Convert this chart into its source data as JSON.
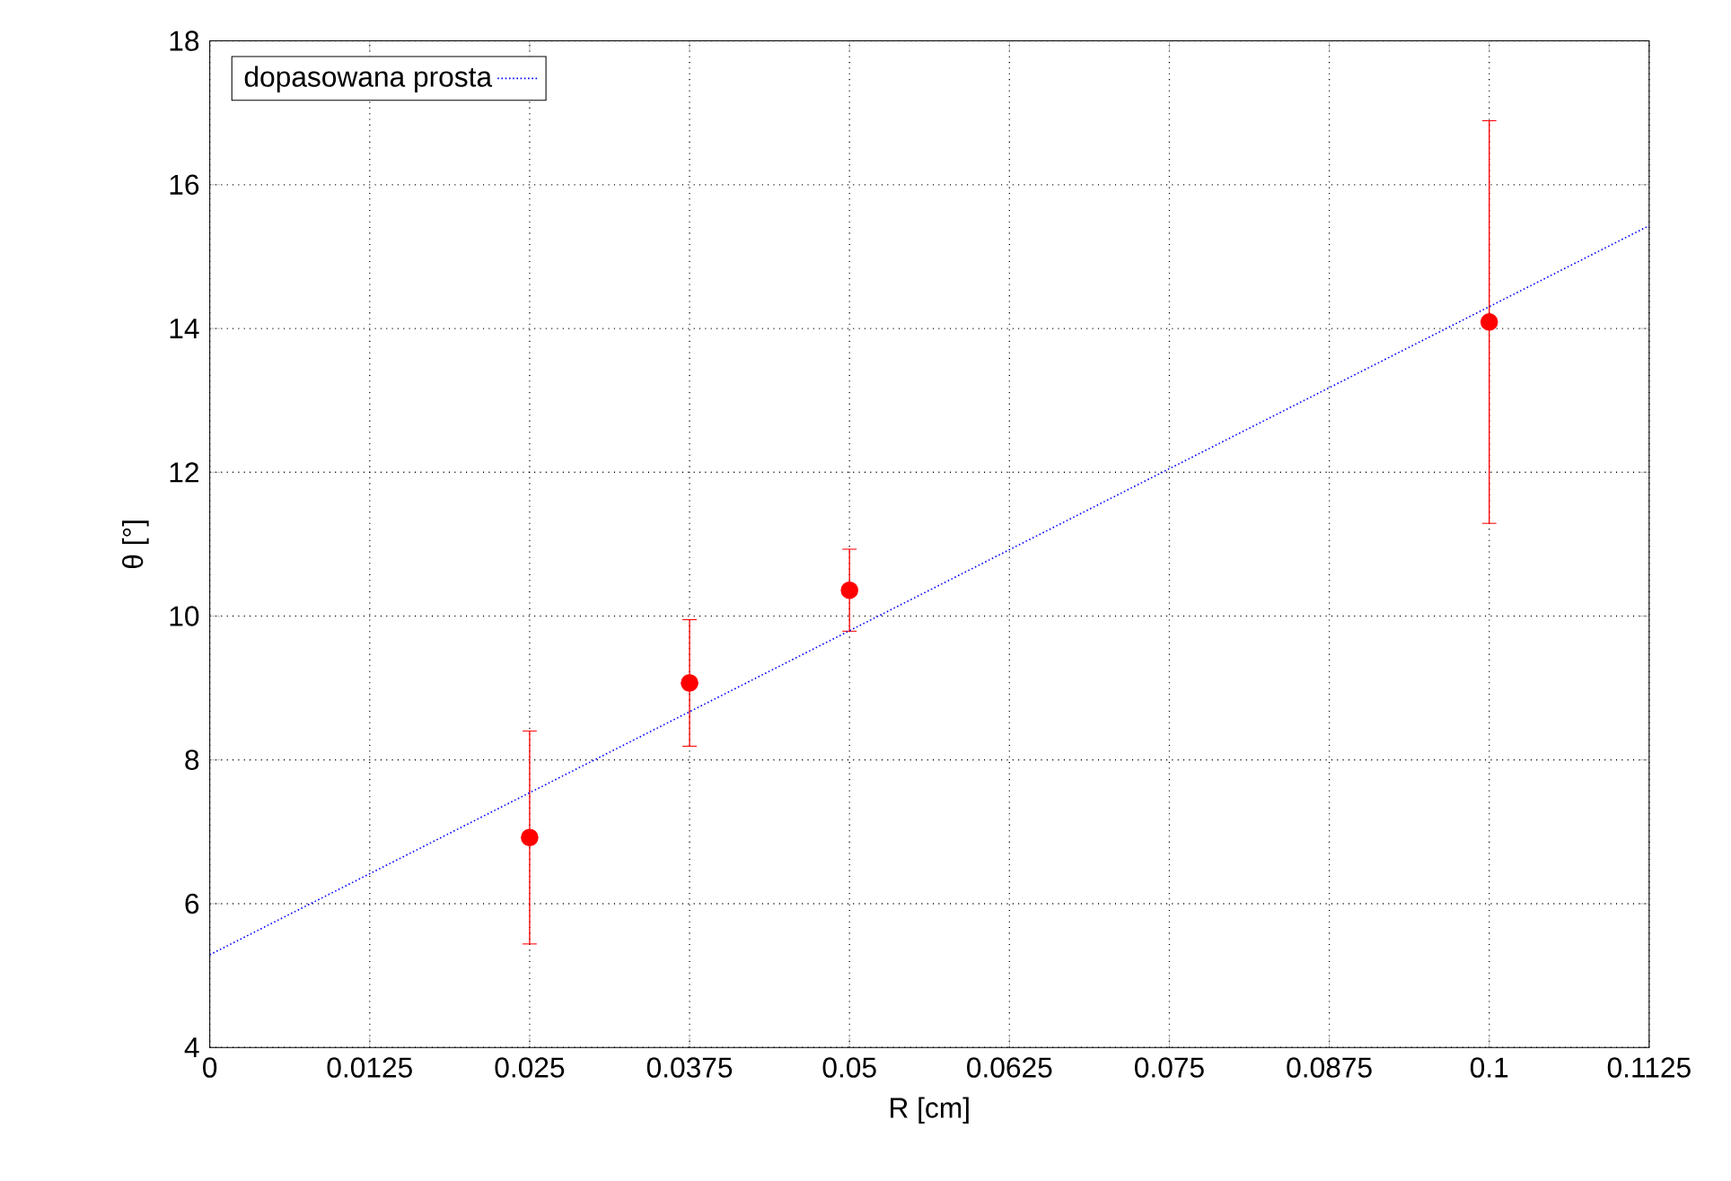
{
  "chart_data": {
    "type": "scatter",
    "xlabel": "R [cm]",
    "ylabel": "θ [°]",
    "xlim": [
      0,
      0.1125
    ],
    "ylim": [
      4,
      18
    ],
    "xticks": [
      0,
      0.0125,
      0.025,
      0.0375,
      0.05,
      0.0625,
      0.075,
      0.0875,
      0.1,
      0.1125
    ],
    "yticks": [
      4,
      6,
      8,
      10,
      12,
      14,
      16,
      18
    ],
    "grid": true,
    "legend": "top left",
    "series": [
      {
        "color": "#ff0000",
        "marker": "circle",
        "x": [
          0.025,
          0.0375,
          0.05,
          0.1
        ],
        "values": [
          6.92,
          9.07,
          10.36,
          14.09
        ],
        "errors": [
          1.48,
          0.88,
          0.57,
          2.8
        ]
      },
      {
        "type": "line",
        "name": "dopasowana prosta",
        "color": "#0000ff",
        "line_style": "dotted",
        "marker": "none",
        "x": [
          0,
          0.1125
        ],
        "values": [
          5.29,
          15.43
        ]
      }
    ]
  }
}
